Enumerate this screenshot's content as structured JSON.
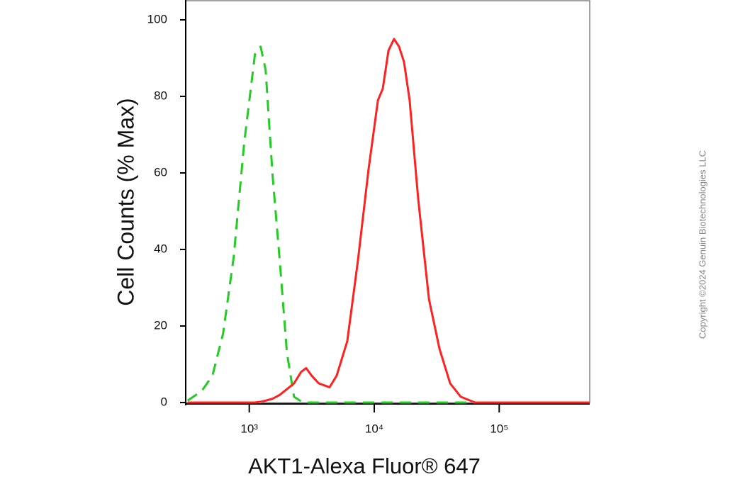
{
  "chart_data": {
    "type": "line",
    "xlabel": "AKT1-Alexa Fluor® 647",
    "ylabel": "Cell Counts (% Max)",
    "copyright": "Copyright ©2024 Genuin Biotechnologies LLC",
    "xscale": "log",
    "xlim": [
      310,
      530000
    ],
    "ylim": [
      0,
      100
    ],
    "xticks": [
      {
        "value": 1000,
        "label": "10³"
      },
      {
        "value": 10000,
        "label": "10⁴"
      },
      {
        "value": 100000,
        "label": "10⁵"
      }
    ],
    "yticks": [
      0,
      20,
      40,
      60,
      80,
      100
    ],
    "grid": false,
    "x": [
      321,
      416,
      507,
      617,
      750,
      912,
      1110,
      1233,
      1350,
      1540,
      1755,
      2000,
      2280,
      2600,
      2850,
      3160,
      3600,
      4390,
      5000,
      6080,
      7400,
      9010,
      10700,
      11700,
      13000,
      14400,
      15800,
      17300,
      19200,
      22500,
      27400,
      33300,
      40500,
      49300,
      64100,
      123000,
      530000
    ],
    "series": [
      {
        "color": "#22cc22",
        "dash": true,
        "values": [
          0.5,
          3,
          7,
          18,
          38,
          68,
          91,
          93,
          87,
          59,
          37,
          13,
          1.5,
          0.3,
          0,
          0,
          0,
          0,
          0,
          0,
          0,
          0,
          0,
          0,
          0,
          0,
          0,
          0,
          0,
          0,
          0,
          0,
          0,
          0,
          0,
          0,
          0
        ]
      },
      {
        "color": "#ff2020",
        "dash": false,
        "values": [
          0,
          0,
          0,
          0,
          0,
          0,
          0,
          0.2,
          0.5,
          1,
          2,
          3.5,
          5,
          8,
          9,
          7,
          5,
          4,
          7,
          16,
          37,
          61,
          79,
          82,
          92,
          95,
          93,
          89,
          79,
          53,
          27,
          14,
          5,
          1.5,
          0,
          0,
          0
        ]
      }
    ]
  }
}
